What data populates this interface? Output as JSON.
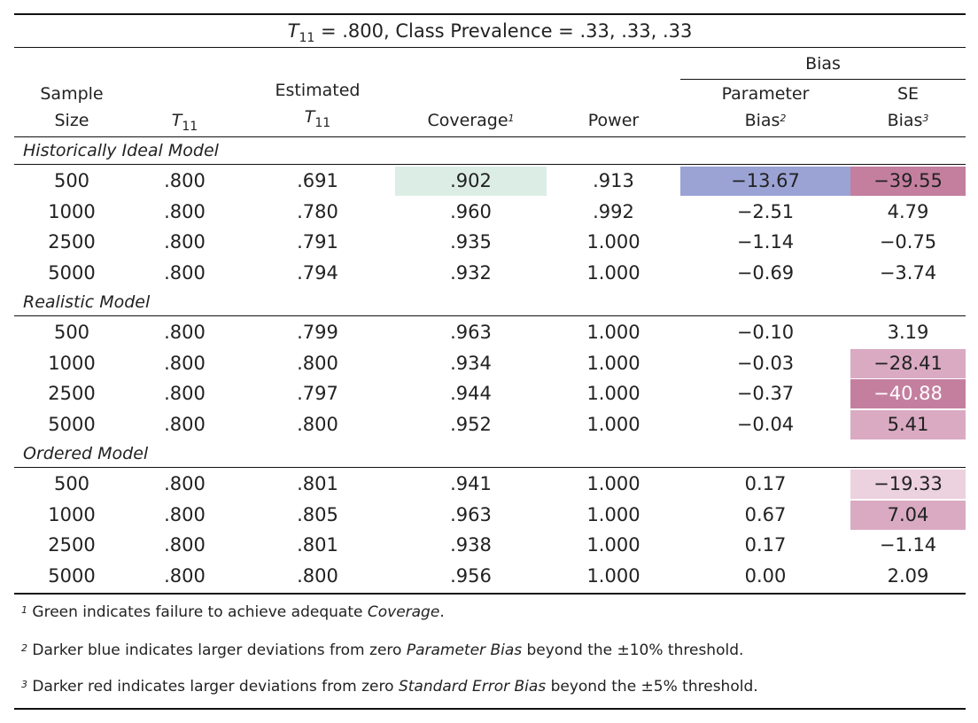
{
  "title": {
    "prefix": "T",
    "sub": "11",
    "rest": " = .800, Class Prevalence = .33, .33, .33"
  },
  "headers": {
    "sample_size_1": "Sample",
    "sample_size_2": "Size",
    "t11": "T",
    "t11_sub": "11",
    "est_1": "Estimated",
    "est_2": "T",
    "est_2_sub": "11",
    "coverage": "Coverage",
    "coverage_sup": "1",
    "power": "Power",
    "bias_group": "Bias",
    "param_1": "Parameter",
    "param_2": "Bias",
    "param_sup": "2",
    "se_1": "SE",
    "se_2": "Bias",
    "se_sup": "3"
  },
  "sections": [
    {
      "label": "Historically Ideal Model",
      "rows": [
        {
          "n": "500",
          "t11": ".800",
          "est": ".691",
          "coverage": ".902",
          "power": ".913",
          "param_bias": "−13.67",
          "se_bias": "−39.55"
        },
        {
          "n": "1000",
          "t11": ".800",
          "est": ".780",
          "coverage": ".960",
          "power": ".992",
          "param_bias": "−2.51",
          "se_bias": "4.79"
        },
        {
          "n": "2500",
          "t11": ".800",
          "est": ".791",
          "coverage": ".935",
          "power": "1.000",
          "param_bias": "−1.14",
          "se_bias": "−0.75"
        },
        {
          "n": "5000",
          "t11": ".800",
          "est": ".794",
          "coverage": ".932",
          "power": "1.000",
          "param_bias": "−0.69",
          "se_bias": "−3.74"
        }
      ]
    },
    {
      "label": "Realistic Model",
      "rows": [
        {
          "n": "500",
          "t11": ".800",
          "est": ".799",
          "coverage": ".963",
          "power": "1.000",
          "param_bias": "−0.10",
          "se_bias": "3.19"
        },
        {
          "n": "1000",
          "t11": ".800",
          "est": ".800",
          "coverage": ".934",
          "power": "1.000",
          "param_bias": "−0.03",
          "se_bias": "−28.41"
        },
        {
          "n": "2500",
          "t11": ".800",
          "est": ".797",
          "coverage": ".944",
          "power": "1.000",
          "param_bias": "−0.37",
          "se_bias": "−40.88"
        },
        {
          "n": "5000",
          "t11": ".800",
          "est": ".800",
          "coverage": ".952",
          "power": "1.000",
          "param_bias": "−0.04",
          "se_bias": "5.41"
        }
      ]
    },
    {
      "label": "Ordered Model",
      "rows": [
        {
          "n": "500",
          "t11": ".800",
          "est": ".801",
          "coverage": ".941",
          "power": "1.000",
          "param_bias": "0.17",
          "se_bias": "−19.33"
        },
        {
          "n": "1000",
          "t11": ".800",
          "est": ".805",
          "coverage": ".963",
          "power": "1.000",
          "param_bias": "0.67",
          "se_bias": "7.04"
        },
        {
          "n": "2500",
          "t11": ".800",
          "est": ".801",
          "coverage": ".938",
          "power": "1.000",
          "param_bias": "0.17",
          "se_bias": "−1.14"
        },
        {
          "n": "5000",
          "t11": ".800",
          "est": ".800",
          "coverage": ".956",
          "power": "1.000",
          "param_bias": "0.00",
          "se_bias": "2.09"
        }
      ]
    }
  ],
  "highlight_colors": {
    "coverage_fail": "#dcede6",
    "param_bias_dark": "#9ba3d4",
    "se_bias_dark": "#c47f9f",
    "se_bias_mid": "#d9aac2",
    "se_bias_light": "#ecd1de"
  },
  "footnotes": [
    {
      "num": "1",
      "before": " Green indicates failure to achieve adequate ",
      "italic": "Coverage",
      "after": "."
    },
    {
      "num": "2",
      "before": " Darker blue indicates larger deviations from zero ",
      "italic": "Parameter Bias",
      "after": " beyond the ±10% threshold."
    },
    {
      "num": "3",
      "before": " Darker red indicates larger deviations from zero ",
      "italic": "Standard Error Bias",
      "after": " beyond the ±5% threshold."
    }
  ]
}
